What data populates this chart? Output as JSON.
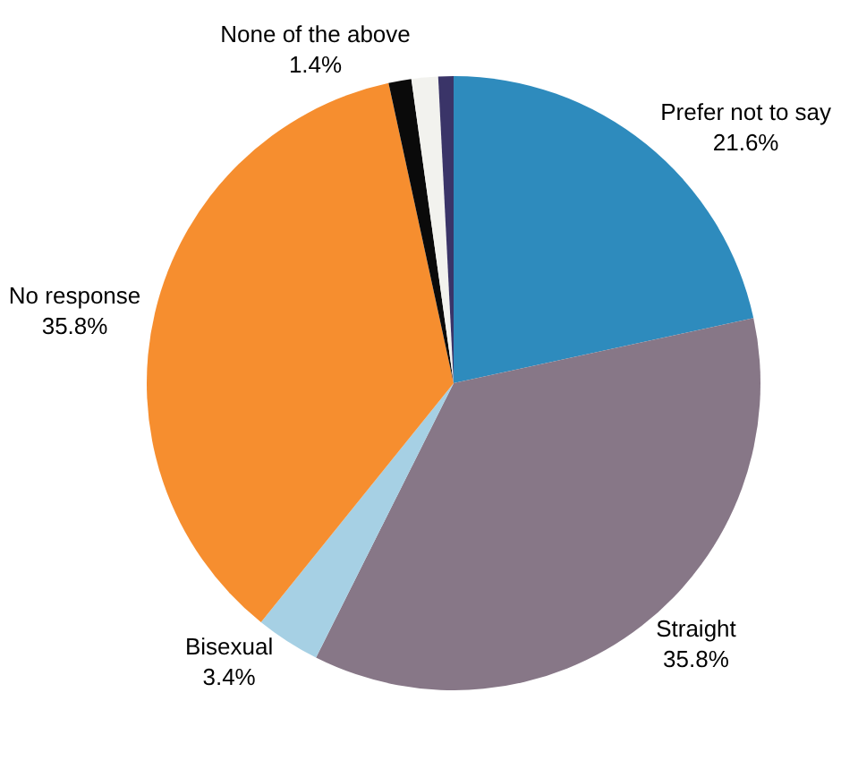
{
  "chart_data": {
    "type": "pie",
    "categories": [
      "Prefer not to say",
      "Straight",
      "Bisexual",
      "No response",
      null,
      "None of the above",
      null
    ],
    "values": [
      21.6,
      35.8,
      3.4,
      35.8,
      1.2,
      1.4,
      0.8
    ],
    "value_labels": [
      "21.6%",
      "35.8%",
      "3.4%",
      "35.8%",
      null,
      "1.4%",
      null
    ],
    "colors": [
      "#2e8bbd",
      "#877787",
      "#a6d0e4",
      "#f68e2f",
      "#0a0a0a",
      "#f2f2ee",
      "#3a3468"
    ],
    "legend": false
  }
}
